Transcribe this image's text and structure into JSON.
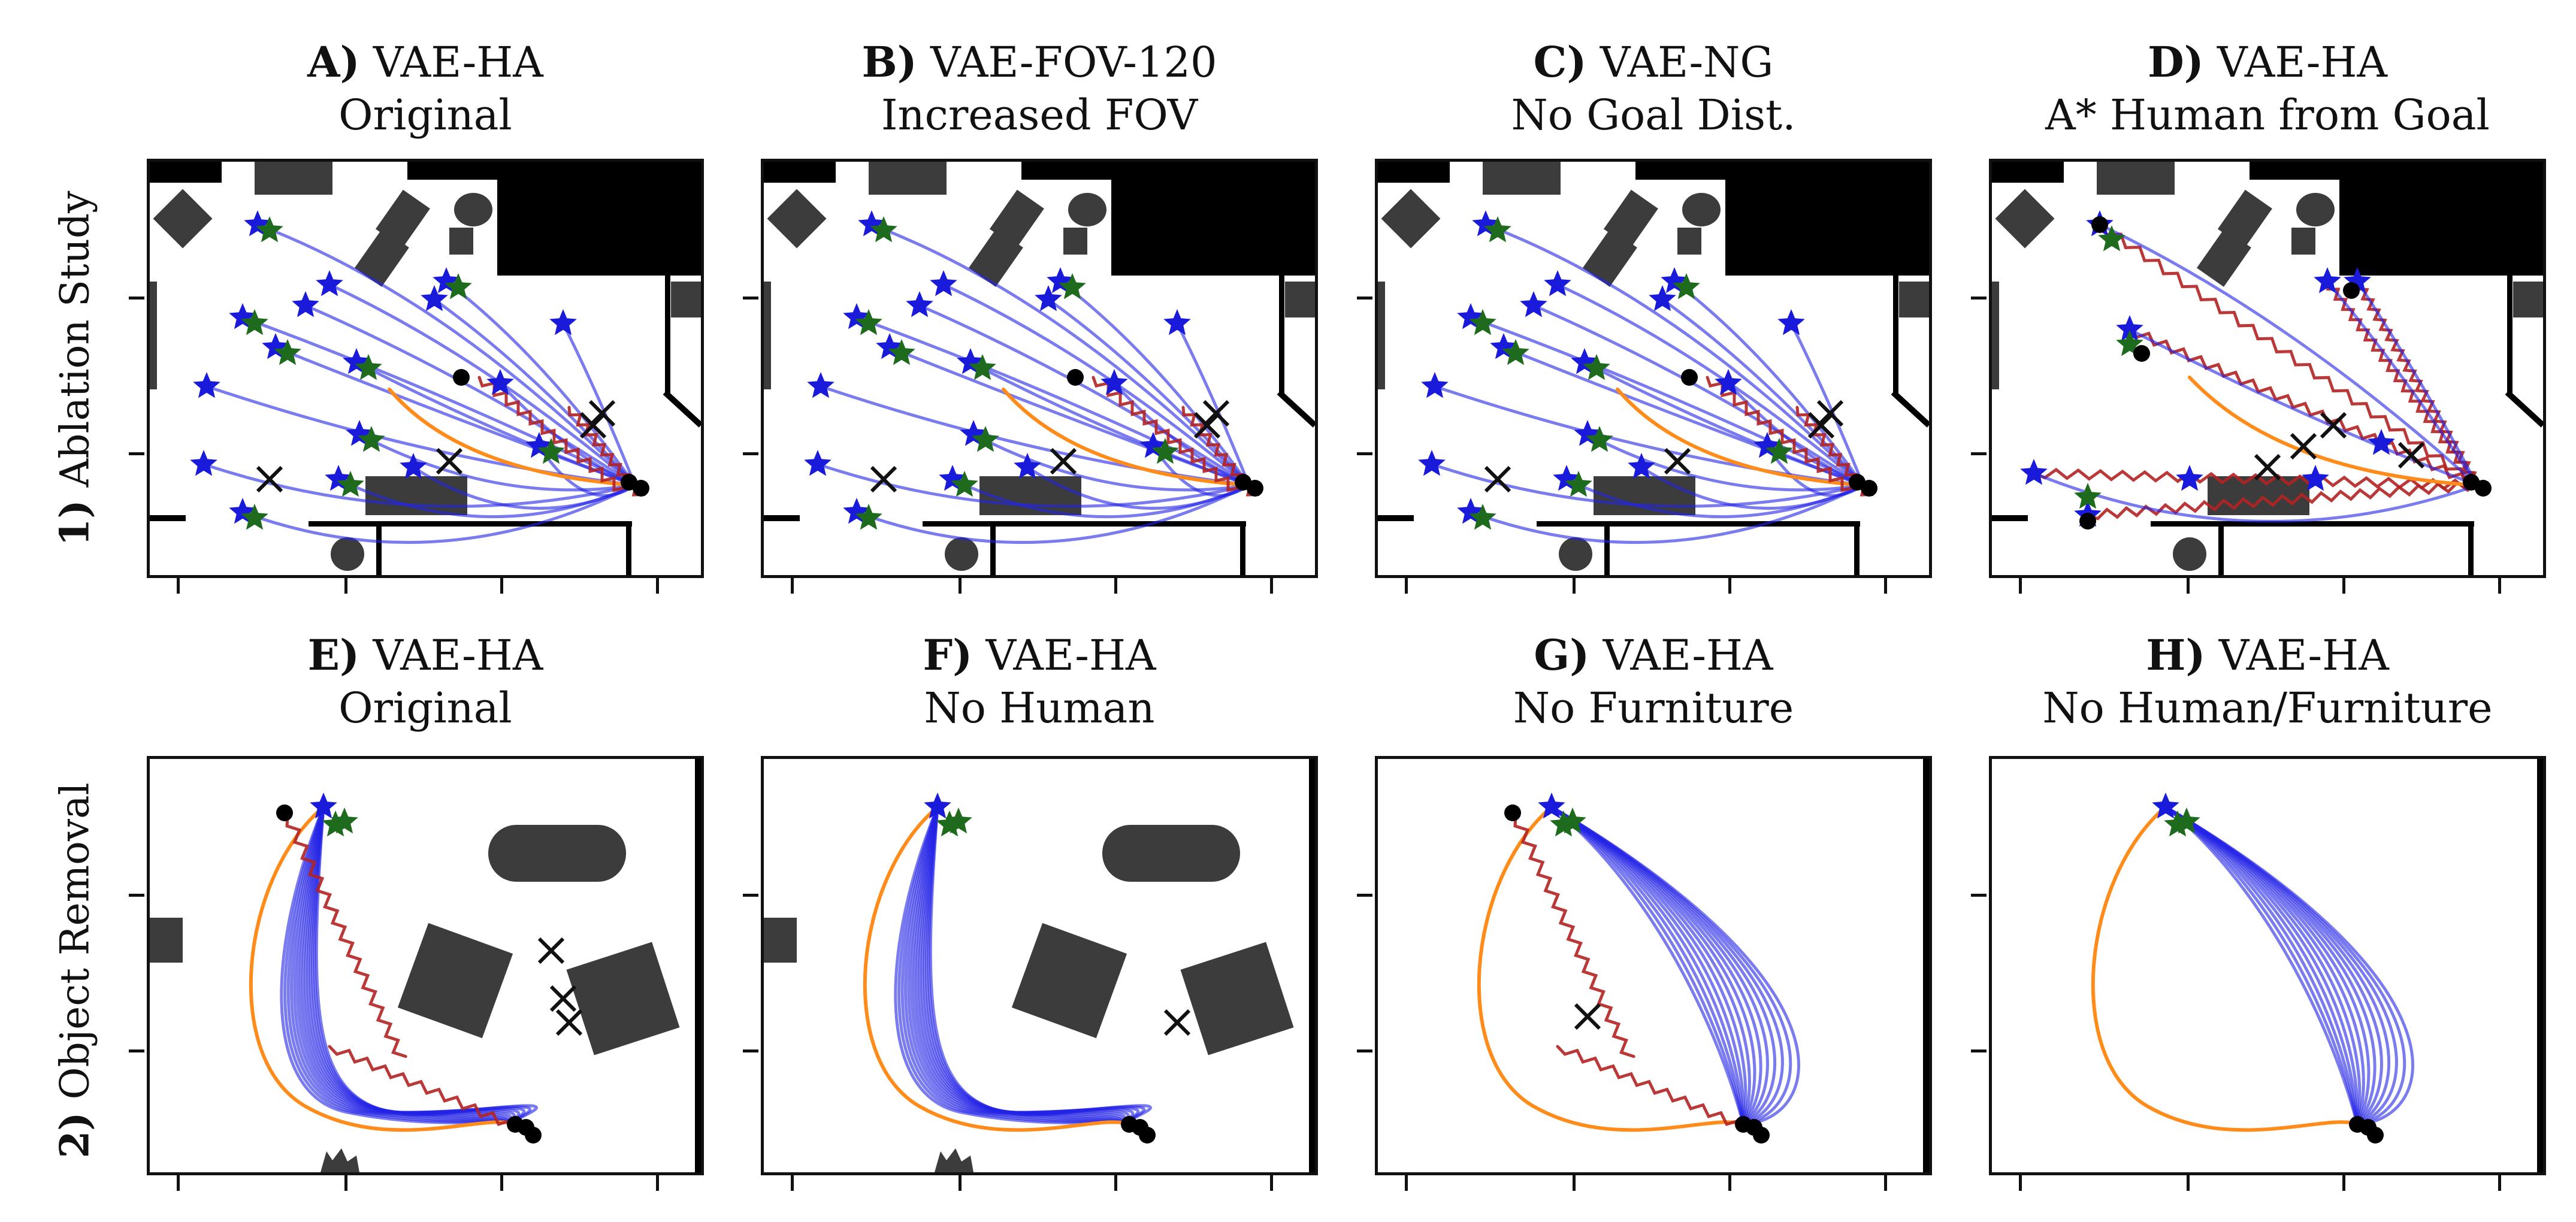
{
  "rows": [
    {
      "number": "1)",
      "label": "Ablation Study"
    },
    {
      "number": "2)",
      "label": "Object Removal"
    }
  ],
  "panels": [
    {
      "letter": "A)",
      "model": "VAE-HA",
      "subtitle": "Original"
    },
    {
      "letter": "B)",
      "model": "VAE-FOV-120",
      "subtitle": "Increased FOV"
    },
    {
      "letter": "C)",
      "model": "VAE-NG",
      "subtitle": "No Goal Dist."
    },
    {
      "letter": "D)",
      "model": "VAE-HA",
      "subtitle": "A* Human from Goal"
    },
    {
      "letter": "E)",
      "model": "VAE-HA",
      "subtitle": "Original"
    },
    {
      "letter": "F)",
      "model": "VAE-HA",
      "subtitle": "No Human"
    },
    {
      "letter": "G)",
      "model": "VAE-HA",
      "subtitle": "No Furniture"
    },
    {
      "letter": "H)",
      "model": "VAE-HA",
      "subtitle": "No Human/Furniture"
    }
  ],
  "colors": {
    "robot_path": "#2323e6",
    "reference_path": "#ff8c1a",
    "human_path": "#b22222",
    "start_marker": "#1a1adb",
    "end_marker": "#1e6b1e",
    "obstacle": "#3c3c3c",
    "collision_marker": "#111111"
  }
}
